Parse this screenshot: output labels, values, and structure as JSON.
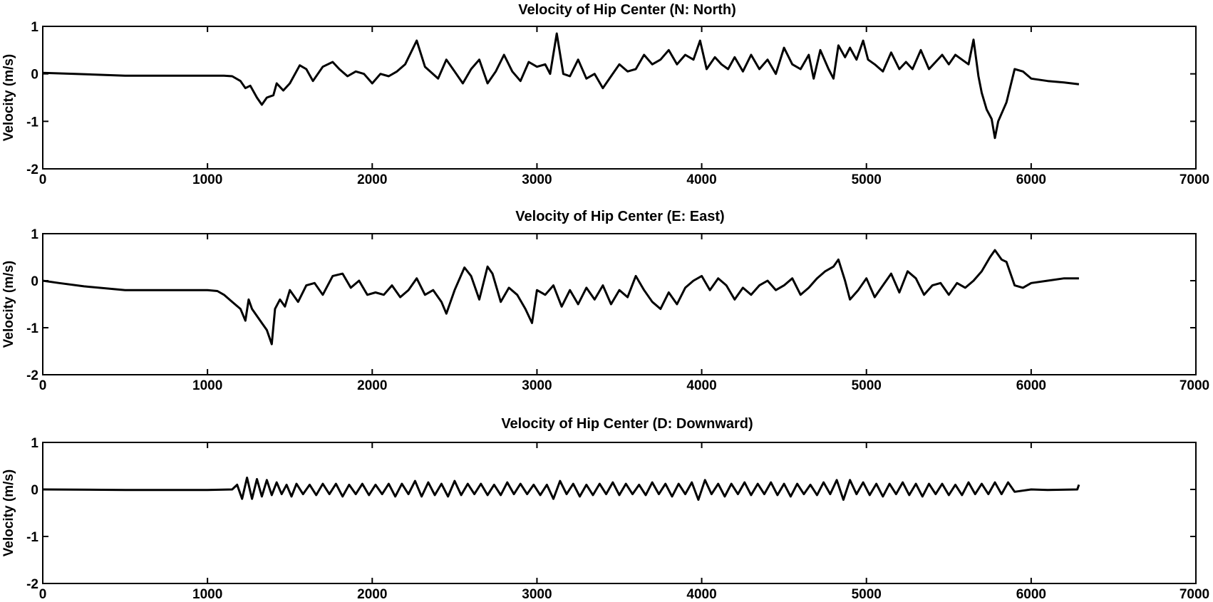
{
  "colors": {
    "line": "#000000",
    "axes": "#000000",
    "background": "#ffffff"
  },
  "chart_data": [
    {
      "type": "line",
      "title": "Velocity of Hip Center (N: North)",
      "ylabel": "Velocity (m/s)",
      "xlabel": "",
      "xlim": [
        0,
        7000
      ],
      "ylim": [
        -2,
        1
      ],
      "xticks": [
        "0",
        "1000",
        "2000",
        "3000",
        "4000",
        "5000",
        "6000",
        "7000"
      ],
      "yticks": [
        "1",
        "0",
        "-1",
        "-2"
      ],
      "grid": false,
      "series": [
        {
          "x": [
            0,
            200,
            500,
            800,
            1000,
            1100,
            1150,
            1200,
            1230,
            1260,
            1300,
            1330,
            1360,
            1400,
            1420,
            1460,
            1500,
            1560,
            1600,
            1640,
            1700,
            1760,
            1800,
            1850,
            1900,
            1950,
            2000,
            2050,
            2100,
            2150,
            2200,
            2270,
            2320,
            2400,
            2450,
            2500,
            2550,
            2600,
            2650,
            2700,
            2750,
            2800,
            2850,
            2900,
            2950,
            3000,
            3050,
            3080,
            3120,
            3160,
            3200,
            3250,
            3300,
            3350,
            3400,
            3450,
            3500,
            3550,
            3600,
            3650,
            3700,
            3750,
            3800,
            3850,
            3900,
            3950,
            3990,
            4030,
            4080,
            4120,
            4160,
            4200,
            4250,
            4300,
            4350,
            4400,
            4450,
            4500,
            4550,
            4600,
            4650,
            4680,
            4720,
            4770,
            4800,
            4830,
            4870,
            4900,
            4940,
            4980,
            5010,
            5050,
            5100,
            5150,
            5200,
            5240,
            5280,
            5330,
            5380,
            5420,
            5460,
            5500,
            5540,
            5580,
            5620,
            5650,
            5680,
            5700,
            5730,
            5760,
            5780,
            5800,
            5850,
            5900,
            5950,
            6000,
            6100,
            6200,
            6290
          ],
          "y": [
            0.02,
            0.0,
            -0.04,
            -0.04,
            -0.04,
            -0.04,
            -0.05,
            -0.15,
            -0.3,
            -0.25,
            -0.5,
            -0.65,
            -0.5,
            -0.45,
            -0.2,
            -0.35,
            -0.2,
            0.18,
            0.1,
            -0.15,
            0.15,
            0.25,
            0.1,
            -0.05,
            0.05,
            0.0,
            -0.2,
            0.0,
            -0.05,
            0.05,
            0.2,
            0.7,
            0.15,
            -0.1,
            0.3,
            0.05,
            -0.2,
            0.1,
            0.3,
            -0.2,
            0.05,
            0.4,
            0.05,
            -0.15,
            0.25,
            0.15,
            0.2,
            0.0,
            0.85,
            0.0,
            -0.05,
            0.3,
            -0.1,
            0.0,
            -0.3,
            -0.05,
            0.2,
            0.05,
            0.1,
            0.4,
            0.2,
            0.3,
            0.5,
            0.2,
            0.4,
            0.3,
            0.7,
            0.1,
            0.35,
            0.2,
            0.1,
            0.35,
            0.05,
            0.4,
            0.1,
            0.3,
            0.0,
            0.55,
            0.2,
            0.1,
            0.4,
            -0.1,
            0.5,
            0.1,
            -0.1,
            0.6,
            0.35,
            0.55,
            0.3,
            0.7,
            0.3,
            0.2,
            0.05,
            0.45,
            0.1,
            0.25,
            0.1,
            0.5,
            0.1,
            0.25,
            0.4,
            0.2,
            0.4,
            0.3,
            0.2,
            0.72,
            -0.05,
            -0.4,
            -0.75,
            -0.95,
            -1.35,
            -1.0,
            -0.6,
            0.1,
            0.05,
            -0.1,
            -0.15,
            -0.18,
            -0.22
          ]
        }
      ]
    },
    {
      "type": "line",
      "title": "Velocity of Hip Center (E: East)",
      "ylabel": "Velocity (m/s)",
      "xlabel": "",
      "xlim": [
        0,
        7000
      ],
      "ylim": [
        -2,
        1
      ],
      "xticks": [
        "0",
        "1000",
        "2000",
        "3000",
        "4000",
        "5000",
        "6000",
        "7000"
      ],
      "yticks": [
        "1",
        "0",
        "-1",
        "-2"
      ],
      "grid": false,
      "series": [
        {
          "x": [
            0,
            100,
            250,
            500,
            800,
            1000,
            1060,
            1100,
            1150,
            1200,
            1230,
            1250,
            1270,
            1300,
            1330,
            1360,
            1390,
            1410,
            1440,
            1470,
            1500,
            1550,
            1600,
            1650,
            1700,
            1760,
            1820,
            1870,
            1920,
            1970,
            2020,
            2070,
            2120,
            2170,
            2220,
            2270,
            2320,
            2370,
            2420,
            2450,
            2500,
            2560,
            2600,
            2650,
            2700,
            2730,
            2780,
            2830,
            2880,
            2930,
            2970,
            3000,
            3050,
            3100,
            3150,
            3200,
            3250,
            3300,
            3350,
            3400,
            3450,
            3500,
            3550,
            3600,
            3650,
            3700,
            3750,
            3800,
            3850,
            3900,
            3950,
            4000,
            4050,
            4100,
            4150,
            4200,
            4250,
            4300,
            4350,
            4400,
            4450,
            4500,
            4550,
            4600,
            4650,
            4700,
            4750,
            4800,
            4830,
            4870,
            4900,
            4950,
            5000,
            5050,
            5100,
            5150,
            5200,
            5250,
            5300,
            5350,
            5400,
            5450,
            5500,
            5550,
            5600,
            5650,
            5700,
            5750,
            5780,
            5820,
            5850,
            5900,
            5950,
            6000,
            6100,
            6200,
            6290
          ],
          "y": [
            0.0,
            -0.05,
            -0.12,
            -0.2,
            -0.2,
            -0.2,
            -0.22,
            -0.3,
            -0.45,
            -0.6,
            -0.85,
            -0.4,
            -0.6,
            -0.75,
            -0.9,
            -1.05,
            -1.35,
            -0.6,
            -0.4,
            -0.55,
            -0.2,
            -0.45,
            -0.1,
            -0.05,
            -0.3,
            0.1,
            0.15,
            -0.15,
            0.0,
            -0.3,
            -0.25,
            -0.3,
            -0.1,
            -0.35,
            -0.2,
            0.05,
            -0.3,
            -0.2,
            -0.45,
            -0.7,
            -0.2,
            0.28,
            0.1,
            -0.4,
            0.3,
            0.15,
            -0.45,
            -0.15,
            -0.3,
            -0.6,
            -0.9,
            -0.2,
            -0.3,
            -0.1,
            -0.55,
            -0.2,
            -0.5,
            -0.15,
            -0.4,
            -0.1,
            -0.5,
            -0.2,
            -0.35,
            0.1,
            -0.2,
            -0.45,
            -0.6,
            -0.25,
            -0.5,
            -0.15,
            0.0,
            0.1,
            -0.2,
            0.05,
            -0.1,
            -0.4,
            -0.15,
            -0.3,
            -0.1,
            0.0,
            -0.2,
            -0.1,
            0.05,
            -0.3,
            -0.15,
            0.05,
            0.2,
            0.3,
            0.45,
            0.0,
            -0.4,
            -0.2,
            0.05,
            -0.35,
            -0.1,
            0.15,
            -0.25,
            0.2,
            0.05,
            -0.3,
            -0.1,
            -0.05,
            -0.3,
            -0.05,
            -0.15,
            0.0,
            0.2,
            0.5,
            0.65,
            0.45,
            0.4,
            -0.1,
            -0.15,
            -0.05,
            0.0,
            0.05,
            0.05
          ]
        }
      ]
    },
    {
      "type": "line",
      "title": "Velocity of Hip Center (D: Downward)",
      "ylabel": "Velocity (m/s)",
      "xlabel": "",
      "xlim": [
        0,
        7000
      ],
      "ylim": [
        -2,
        1
      ],
      "xticks": [
        "0",
        "1000",
        "2000",
        "3000",
        "4000",
        "5000",
        "6000",
        "7000"
      ],
      "yticks": [
        "1",
        "0",
        "-1",
        "-2"
      ],
      "grid": false,
      "series": [
        {
          "x": [
            0,
            500,
            1000,
            1150,
            1180,
            1210,
            1240,
            1270,
            1300,
            1330,
            1360,
            1390,
            1420,
            1450,
            1480,
            1510,
            1540,
            1580,
            1620,
            1660,
            1700,
            1740,
            1780,
            1820,
            1860,
            1900,
            1940,
            1980,
            2020,
            2060,
            2100,
            2140,
            2180,
            2220,
            2260,
            2300,
            2340,
            2380,
            2420,
            2460,
            2500,
            2540,
            2580,
            2620,
            2660,
            2700,
            2740,
            2780,
            2820,
            2860,
            2900,
            2940,
            2980,
            3020,
            3060,
            3100,
            3140,
            3180,
            3220,
            3260,
            3300,
            3340,
            3380,
            3420,
            3460,
            3500,
            3540,
            3580,
            3620,
            3660,
            3700,
            3740,
            3780,
            3820,
            3860,
            3900,
            3940,
            3980,
            4020,
            4060,
            4100,
            4140,
            4180,
            4220,
            4260,
            4300,
            4340,
            4380,
            4420,
            4460,
            4500,
            4540,
            4580,
            4620,
            4660,
            4700,
            4740,
            4780,
            4820,
            4860,
            4900,
            4940,
            4980,
            5020,
            5060,
            5100,
            5140,
            5180,
            5220,
            5260,
            5300,
            5340,
            5380,
            5420,
            5460,
            5500,
            5540,
            5580,
            5620,
            5660,
            5700,
            5740,
            5780,
            5820,
            5860,
            5900,
            6000,
            6100,
            6280,
            6290
          ],
          "y": [
            0.0,
            -0.01,
            -0.01,
            0.0,
            0.1,
            -0.2,
            0.25,
            -0.2,
            0.22,
            -0.15,
            0.2,
            -0.12,
            0.15,
            -0.1,
            0.1,
            -0.15,
            0.12,
            -0.1,
            0.1,
            -0.12,
            0.12,
            -0.1,
            0.12,
            -0.15,
            0.1,
            -0.1,
            0.12,
            -0.12,
            0.1,
            -0.1,
            0.12,
            -0.15,
            0.12,
            -0.1,
            0.18,
            -0.15,
            0.15,
            -0.12,
            0.12,
            -0.15,
            0.18,
            -0.12,
            0.12,
            -0.1,
            0.12,
            -0.12,
            0.1,
            -0.12,
            0.15,
            -0.1,
            0.12,
            -0.1,
            0.1,
            -0.12,
            0.1,
            -0.2,
            0.18,
            -0.1,
            0.12,
            -0.15,
            0.1,
            -0.12,
            0.12,
            -0.1,
            0.15,
            -0.12,
            0.12,
            -0.1,
            0.1,
            -0.12,
            0.15,
            -0.1,
            0.12,
            -0.15,
            0.12,
            -0.1,
            0.15,
            -0.22,
            0.2,
            -0.1,
            0.12,
            -0.15,
            0.12,
            -0.1,
            0.15,
            -0.12,
            0.12,
            -0.1,
            0.15,
            -0.12,
            0.12,
            -0.15,
            0.12,
            -0.1,
            0.1,
            -0.12,
            0.15,
            -0.1,
            0.2,
            -0.22,
            0.2,
            -0.1,
            0.15,
            -0.12,
            0.12,
            -0.15,
            0.12,
            -0.1,
            0.15,
            -0.12,
            0.12,
            -0.15,
            0.12,
            -0.1,
            0.12,
            -0.12,
            0.1,
            -0.12,
            0.15,
            -0.1,
            0.12,
            -0.1,
            0.15,
            -0.1,
            0.15,
            -0.05,
            0.0,
            -0.01,
            0.0,
            0.1
          ]
        }
      ]
    }
  ]
}
